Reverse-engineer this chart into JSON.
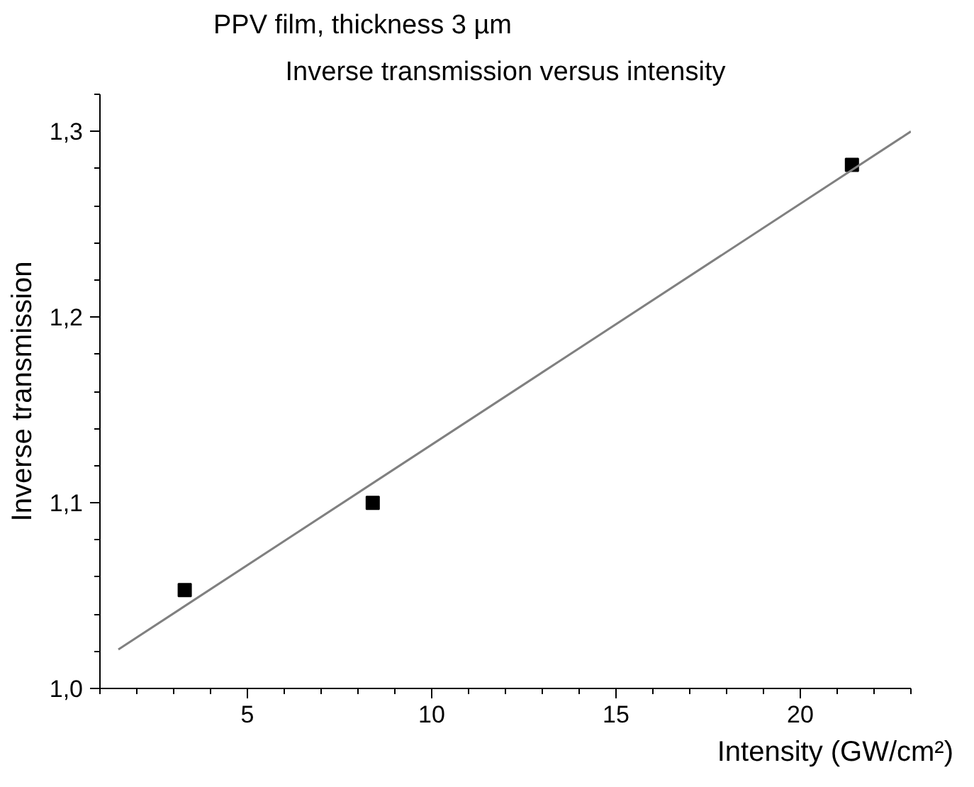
{
  "chart_data": {
    "type": "scatter",
    "title": "PPV film, thickness 3 µm",
    "subtitle": "Inverse transmission versus intensity",
    "xlabel": "Intensity (GW/cm²)",
    "ylabel": "Inverse transmission",
    "x": [
      3.3,
      8.4,
      21.4
    ],
    "series": [
      {
        "color": "#000000",
        "marker": "square",
        "values": [
          1.053,
          1.1,
          1.282
        ]
      },
      {
        "type": "line",
        "color": "#808080",
        "marker": "none",
        "line_style": "solid",
        "x": [
          1.5,
          23.0
        ],
        "values": [
          1.021,
          1.3
        ]
      }
    ],
    "xlim": [
      1,
      23
    ],
    "ylim": [
      1.0,
      1.32
    ],
    "xticks": [
      5,
      10,
      15,
      20
    ],
    "yticks": [
      {
        "value": 1.0,
        "label": "1,0"
      },
      {
        "value": 1.1,
        "label": "1,1"
      },
      {
        "value": 1.2,
        "label": "1,2"
      },
      {
        "value": 1.3,
        "label": "1,3"
      }
    ],
    "grid": false
  }
}
